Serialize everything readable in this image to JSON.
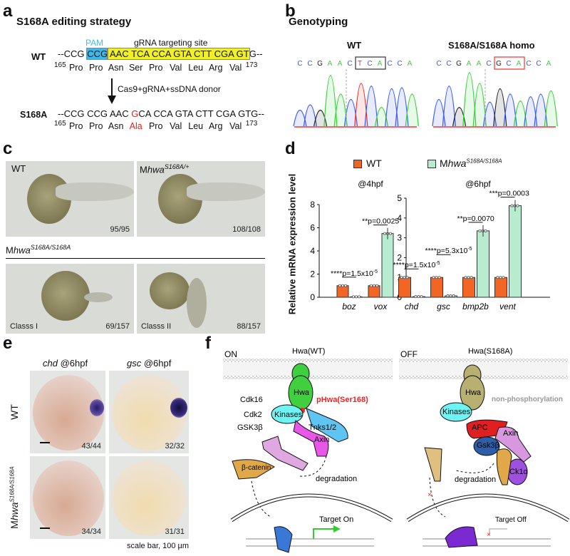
{
  "panel_a": {
    "label": "a",
    "title": "S168A editing strategy",
    "pam": "PAM",
    "grna": "gRNA targeting site",
    "wt_label": "WT",
    "wt_pre": "--CCG ",
    "wt_pam_seq": "CCG",
    "wt_grna_seq": " AAC TCA CCA GTA CTT CGA GT",
    "wt_post": "G--",
    "start": "165",
    "end": "173",
    "wt_aa": [
      "Pro",
      "Pro",
      "Asn",
      "Ser",
      "Pro",
      "Val",
      "Leu",
      "Arg",
      "Val"
    ],
    "arrow_text": "Cas9+gRNA+ssDNA donor",
    "mut_label": "S168A",
    "mut_pre": "--CCG CCG AAC ",
    "mut_g": "G",
    "mut_post": "CA CCA GTA CTT CGA GTG--",
    "mut_aa": [
      "Pro",
      "Pro",
      "Asn",
      "Ala",
      "Pro",
      "Val",
      "Leu",
      "Arg",
      "Val"
    ]
  },
  "panel_b": {
    "label": "b",
    "title": "Genotyping",
    "wt": {
      "label": "WT",
      "bases": [
        "C",
        "C",
        "G",
        "A",
        "A",
        "C",
        "T",
        "C",
        "A",
        "C",
        "C",
        "A"
      ]
    },
    "homo": {
      "label": "S168A/S168A homo",
      "bases": [
        "C",
        "C",
        "G",
        "A",
        "A",
        "C",
        "G",
        "C",
        "A",
        "C",
        "C",
        "A"
      ]
    },
    "colors": {
      "A": "#3ad13a",
      "C": "#3a5cf0",
      "G": "#222222",
      "T": "#e8302a"
    }
  },
  "panel_c": {
    "label": "c",
    "wt": "WT",
    "wt_count": "95/95",
    "het_prefix": "M",
    "het_gene": "hwa",
    "het_sup": "S168A/+",
    "het_count": "108/108",
    "homo_prefix": "M",
    "homo_gene": "hwa",
    "homo_sup": "S168A/S168A",
    "class1": "Classs I",
    "class1_count": "69/157",
    "class2": "Classs II",
    "class2_count": "88/157"
  },
  "panel_d": {
    "label": "d",
    "legend": [
      {
        "name": "WT",
        "color": "#f26522"
      },
      {
        "name_prefix": "M",
        "name_gene": "hwa",
        "name_sup": "S168A/S168A",
        "color": "#b8ecd0"
      }
    ],
    "ylabel": "Relative  mRNA expression level"
  },
  "chart_data": [
    {
      "type": "bar",
      "title": "@4hpf",
      "ylim": [
        0,
        8
      ],
      "yticks": [
        0,
        2,
        4,
        6,
        8
      ],
      "categories": [
        "boz",
        "vox"
      ],
      "series": [
        {
          "name": "WT",
          "values": [
            1.0,
            1.0
          ]
        },
        {
          "name": "MhwaS168A/S168A",
          "values": [
            0.04,
            5.5
          ]
        }
      ],
      "annotations": [
        "****p=1.5x10",
        "**p=0.0025"
      ],
      "annotation_exp": [
        "-5",
        ""
      ]
    },
    {
      "type": "bar",
      "title": "@6hpf",
      "ylim": [
        0,
        5
      ],
      "yticks": [
        0,
        1,
        2,
        3,
        4,
        5
      ],
      "categories": [
        "chd",
        "gsc",
        "bmp2b",
        "vent"
      ],
      "series": [
        {
          "name": "WT",
          "values": [
            1.0,
            1.0,
            1.0,
            1.0
          ]
        },
        {
          "name": "MhwaS168A/S168A",
          "values": [
            0.03,
            0.07,
            3.35,
            4.62
          ]
        }
      ],
      "annotations": [
        "****p=1.5x10",
        "****p=5.3x10",
        "**p=0.0070",
        "***p=0.0003"
      ],
      "annotation_exp": [
        "-5",
        "-5",
        "",
        ""
      ]
    }
  ],
  "panel_e": {
    "label": "e",
    "col1_gene": "chd",
    "col1_time": " @6hpf",
    "col2_gene": "gsc",
    "col2_time": " @6hpf",
    "row1": "WT",
    "row2_prefix": "M",
    "row2_gene": "hwa",
    "row2_sup": "S168A/S168A",
    "counts": [
      "43/44",
      "32/32",
      "34/34",
      "31/31"
    ],
    "scale": "scale bar, 100 µm"
  },
  "panel_f": {
    "label": "f",
    "on": "ON",
    "off": "OFF",
    "hwa_wt": "Hwa(WT)",
    "hwa_mut": "Hwa(S168A)",
    "hwa": "Hwa",
    "phos": "pHwa(Ser168)",
    "nonphos": "non-phosphorylation",
    "cdk16": "Cdk16",
    "cdk2": "Cdk2",
    "gsk3b": "GSK3β",
    "kinases": "Kinases",
    "tnks": "Tnks1/2",
    "axin": "Axin",
    "bcat": "β-catenin",
    "degradation": "degradation",
    "target_on": "Target On",
    "apc": "APC",
    "gsk3b_off": "Gsk3β",
    "ck1a": "Ck1α",
    "target_off": "Target Off"
  }
}
